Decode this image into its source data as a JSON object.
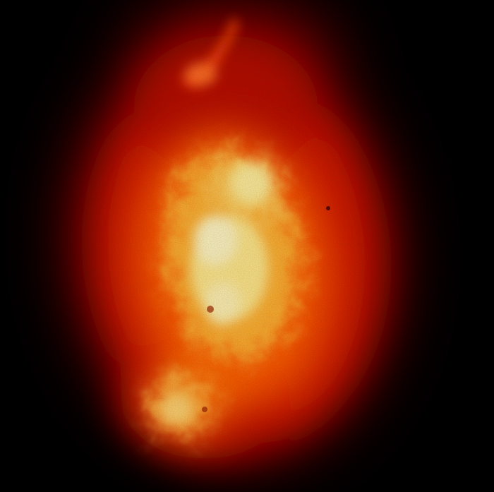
{
  "image": {
    "subject": "glowing-orange-nebula",
    "colors": {
      "background": "#000000",
      "outer_glow": "#8a0000",
      "mid_glow": "#e01a00",
      "inner_glow": "#ff7a00",
      "core": "#ffe87a",
      "hotspot": "#fffbe0"
    }
  }
}
